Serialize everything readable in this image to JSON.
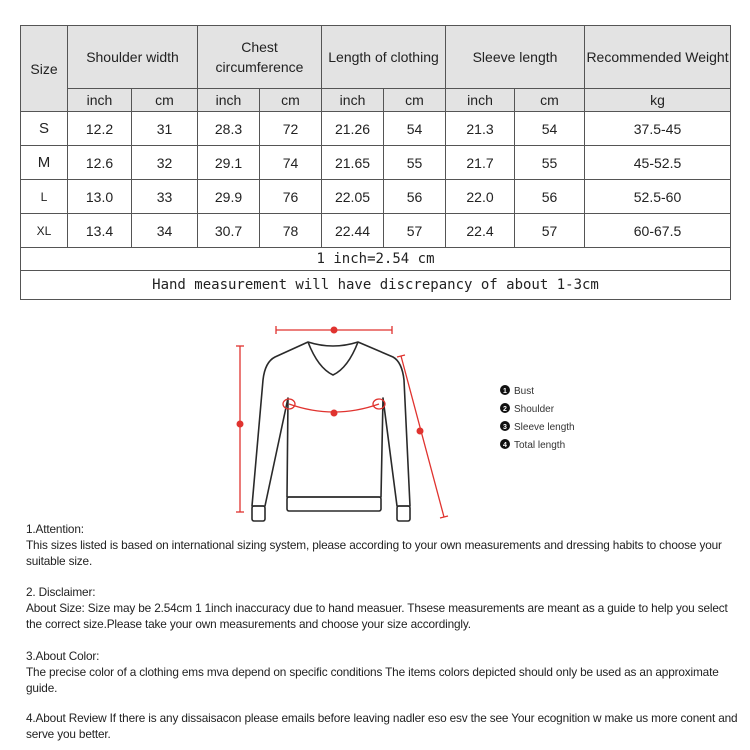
{
  "table": {
    "headers": [
      "Size",
      "Shoulder width",
      "Chest circumference",
      "Length of clothing",
      "Sleeve length",
      "Recommended Weight"
    ],
    "units": [
      "inch",
      "cm",
      "inch",
      "cm",
      "inch",
      "cm",
      "inch",
      "cm",
      "kg"
    ],
    "rows": [
      [
        "S",
        "12.2",
        "31",
        "28.3",
        "72",
        "21.26",
        "54",
        "21.3",
        "54",
        "37.5-45"
      ],
      [
        "M",
        "12.6",
        "32",
        "29.1",
        "74",
        "21.65",
        "55",
        "21.7",
        "55",
        "45-52.5"
      ],
      [
        "L",
        "13.0",
        "33",
        "29.9",
        "76",
        "22.05",
        "56",
        "22.0",
        "56",
        "52.5-60"
      ],
      [
        "XL",
        "13.4",
        "34",
        "30.7",
        "78",
        "22.44",
        "57",
        "22.4",
        "57",
        "60-67.5"
      ]
    ],
    "note1": "1 inch=2.54 cm",
    "note2": "Hand measurement will have discrepancy of about 1-3cm"
  },
  "diagram": {
    "accent_color": "#e0332f",
    "legend": [
      {
        "num": "1",
        "label": "Bust"
      },
      {
        "num": "2",
        "label": "Shoulder"
      },
      {
        "num": "3",
        "label": "Sleeve length"
      },
      {
        "num": "4",
        "label": "Total length"
      }
    ]
  },
  "notes": [
    {
      "title": "1.Attention:",
      "body": "This sizes listed is based on international sizing system, please according to your own measurements and dressing   habits to choose your suitable size."
    },
    {
      "title": "2. Disclaimer:",
      "body": "About Size: Size may be 2.54cm 1 1inch inaccuracy due to hand measuer. Thsese measurements are meant as a   guide to help you select the correct size.Please take your own measurements and choose your size accordingly."
    },
    {
      "title": "3.About Color:",
      "body": "The precise color of a clothing ems mva depend on specific conditions The items colors depicted should only be   used as an approximate guide."
    },
    {
      "title": "",
      "body": "4.About Review If there is any dissaisacon please emails before leaving nadler eso esv the see Your ecognition w   make us more conent and serve you better."
    }
  ]
}
